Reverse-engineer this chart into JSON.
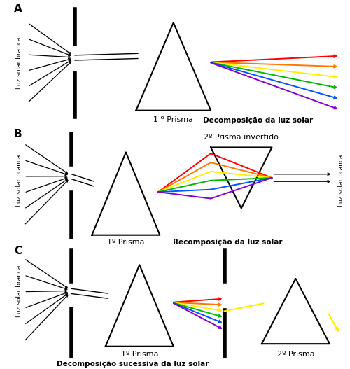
{
  "rainbow_colors": [
    "#ff0000",
    "#ff7700",
    "#ffee00",
    "#00bb00",
    "#0055ff",
    "#8800cc"
  ],
  "background": "#ffffff",
  "panel_A": {
    "label": "A",
    "left_label": "Luz solar branca",
    "prism_label": "1 º Prisma",
    "bottom_label": "Decomposição da luz solar"
  },
  "panel_B": {
    "label": "B",
    "left_label": "Luz solar branca",
    "right_label": "Luz solar branca",
    "prism1_label": "1º Prisma",
    "prism2_label": "2º Prisma invertido",
    "bottom_label": "Recomposição da luz solar"
  },
  "panel_C": {
    "label": "C",
    "left_label": "Luz solar branca",
    "prism1_label": "1º Prisma",
    "prism2_label": "2º Prisma",
    "bottom_label": "Decomposição sucessiva da luz solar"
  }
}
